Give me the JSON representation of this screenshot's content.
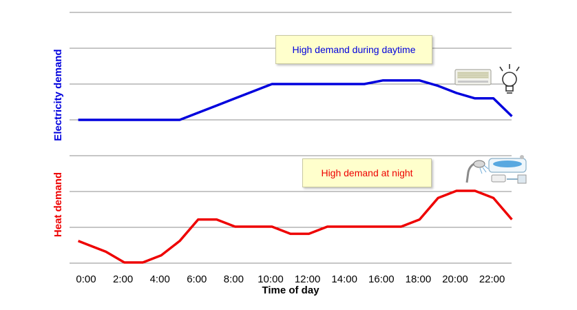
{
  "chart_data": {
    "type": "line",
    "xlabel": "Time of day",
    "x_ticks": [
      "0:00",
      "2:00",
      "4:00",
      "6:00",
      "8:00",
      "10:00",
      "12:00",
      "14:00",
      "16:00",
      "18:00",
      "20:00",
      "22:00"
    ],
    "series": [
      {
        "name": "Electricity demand",
        "color": "#0000dd",
        "x": [
          0,
          1,
          2,
          3,
          4,
          5,
          6,
          7,
          8,
          9,
          10,
          11,
          12,
          13,
          14,
          15,
          16,
          17,
          18,
          19,
          20,
          21,
          22,
          23
        ],
        "y": [
          2.0,
          2.0,
          2.0,
          2.0,
          2.0,
          2.0,
          2.4,
          2.8,
          3.2,
          3.6,
          4.0,
          4.0,
          4.0,
          4.0,
          4.0,
          4.0,
          4.2,
          4.2,
          4.2,
          3.9,
          3.5,
          3.2,
          3.2,
          2.2
        ],
        "ylim": [
          0,
          6
        ],
        "annotation": "High demand during daytime",
        "icons": [
          "air-conditioner-icon",
          "light-bulb-icon"
        ]
      },
      {
        "name": "Heat demand",
        "color": "#ee0000",
        "x": [
          0,
          1,
          2,
          3,
          4,
          5,
          6,
          7,
          8,
          9,
          10,
          11,
          12,
          13,
          14,
          15,
          16,
          17,
          18,
          19,
          20,
          21,
          22,
          23
        ],
        "y": [
          0.6,
          0.3,
          0.0,
          0.0,
          0.2,
          0.6,
          1.2,
          1.2,
          1.0,
          1.0,
          1.0,
          0.8,
          0.8,
          1.0,
          1.0,
          1.0,
          1.0,
          1.0,
          1.2,
          1.8,
          2.0,
          2.0,
          1.8,
          1.2
        ],
        "x_first": -0.5,
        "ylim": [
          0,
          3
        ],
        "annotation": "High demand at night",
        "icons": [
          "shower-icon",
          "bathtub-icon"
        ]
      }
    ],
    "grid": true,
    "grid_lines": 7
  }
}
